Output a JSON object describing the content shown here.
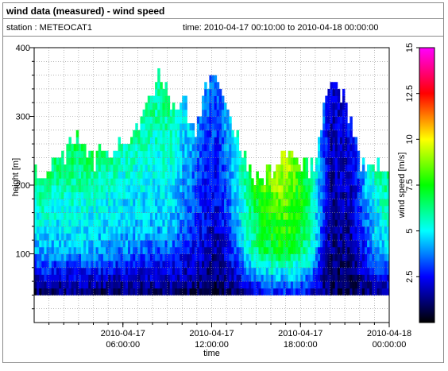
{
  "window": {
    "title": "wind data (measured) - wind speed",
    "station_label": "station : METEOCAT1",
    "time_label": "time: 2010-04-17 00:10:00 to 2010-04-18 00:00:00"
  },
  "chart_data": {
    "type": "heatmap",
    "title": "wind data (measured) - wind speed",
    "xlabel": "time",
    "ylabel": "height [m]",
    "colorbar_label": "wind speed [m/s]",
    "x_range_hours": [
      0,
      24
    ],
    "ylim": [
      0,
      400
    ],
    "y_ticks": [
      100,
      200,
      300,
      400
    ],
    "y_tick_labels": [
      "100",
      "200",
      "300",
      "400"
    ],
    "x_ticks": [
      {
        "hours": 6,
        "line1": "2010-04-17",
        "line2": "06:00:00"
      },
      {
        "hours": 12,
        "line1": "2010-04-17",
        "line2": "12:00:00"
      },
      {
        "hours": 18,
        "line1": "2010-04-17",
        "line2": "18:00:00"
      },
      {
        "hours": 24,
        "line1": "2010-04-18",
        "line2": "00:00:00"
      }
    ],
    "colorbar_range": [
      0,
      15
    ],
    "colorbar_ticks": [
      2.5,
      5,
      7.5,
      10,
      12.5,
      15
    ],
    "colorbar_tick_labels": [
      "2.5",
      "5",
      "7.5",
      "10",
      "12.5",
      "15"
    ],
    "colormap": [
      "#000000",
      "#0000ff",
      "#00ffff",
      "#00ff00",
      "#ffff00",
      "#ff0000",
      "#ff00ff"
    ],
    "height_bins_m": [
      40,
      400
    ],
    "height_bin_size_m": 10,
    "time_bin_size_min": 10,
    "profile_top_m": [
      {
        "hours": 0.0,
        "top_m": 235
      },
      {
        "hours": 0.5,
        "top_m": 225
      },
      {
        "hours": 1.0,
        "top_m": 235
      },
      {
        "hours": 2.0,
        "top_m": 240
      },
      {
        "hours": 2.5,
        "top_m": 275
      },
      {
        "hours": 3.5,
        "top_m": 265
      },
      {
        "hours": 4.0,
        "top_m": 240
      },
      {
        "hours": 5.0,
        "top_m": 255
      },
      {
        "hours": 6.0,
        "top_m": 270
      },
      {
        "hours": 7.0,
        "top_m": 290
      },
      {
        "hours": 7.5,
        "top_m": 330
      },
      {
        "hours": 8.0,
        "top_m": 345
      },
      {
        "hours": 8.5,
        "top_m": 370
      },
      {
        "hours": 9.0,
        "top_m": 340
      },
      {
        "hours": 9.5,
        "top_m": 310
      },
      {
        "hours": 10.0,
        "top_m": 340
      },
      {
        "hours": 10.5,
        "top_m": 300
      },
      {
        "hours": 11.0,
        "top_m": 280
      },
      {
        "hours": 11.5,
        "top_m": 340
      },
      {
        "hours": 12.0,
        "top_m": 365
      },
      {
        "hours": 12.5,
        "top_m": 350
      },
      {
        "hours": 13.0,
        "top_m": 310
      },
      {
        "hours": 13.5,
        "top_m": 290
      },
      {
        "hours": 14.0,
        "top_m": 260
      },
      {
        "hours": 14.5,
        "top_m": 230
      },
      {
        "hours": 15.0,
        "top_m": 215
      },
      {
        "hours": 16.0,
        "top_m": 220
      },
      {
        "hours": 17.0,
        "top_m": 250
      },
      {
        "hours": 17.5,
        "top_m": 245
      },
      {
        "hours": 18.0,
        "top_m": 225
      },
      {
        "hours": 19.0,
        "top_m": 240
      },
      {
        "hours": 19.5,
        "top_m": 310
      },
      {
        "hours": 20.0,
        "top_m": 345
      },
      {
        "hours": 20.5,
        "top_m": 355
      },
      {
        "hours": 21.0,
        "top_m": 330
      },
      {
        "hours": 22.0,
        "top_m": 235
      },
      {
        "hours": 23.0,
        "top_m": 235
      },
      {
        "hours": 24.0,
        "top_m": 225
      }
    ],
    "speed_profile": [
      {
        "hours": 0.0,
        "low_m_s": 1.0,
        "mid_m_s": 4.0,
        "top_m_s": 6.5
      },
      {
        "hours": 3.0,
        "low_m_s": 1.2,
        "mid_m_s": 4.5,
        "top_m_s": 7.0
      },
      {
        "hours": 6.0,
        "low_m_s": 1.0,
        "mid_m_s": 4.0,
        "top_m_s": 6.0
      },
      {
        "hours": 9.0,
        "low_m_s": 1.2,
        "mid_m_s": 4.5,
        "top_m_s": 6.5
      },
      {
        "hours": 11.0,
        "low_m_s": 1.0,
        "mid_m_s": 2.5,
        "top_m_s": 4.0
      },
      {
        "hours": 12.5,
        "low_m_s": 0.8,
        "mid_m_s": 2.0,
        "top_m_s": 3.5
      },
      {
        "hours": 14.0,
        "low_m_s": 1.5,
        "mid_m_s": 4.5,
        "top_m_s": 6.0
      },
      {
        "hours": 15.5,
        "low_m_s": 2.5,
        "mid_m_s": 6.5,
        "top_m_s": 8.5
      },
      {
        "hours": 17.0,
        "low_m_s": 3.0,
        "mid_m_s": 7.5,
        "top_m_s": 10.0
      },
      {
        "hours": 18.5,
        "low_m_s": 2.5,
        "mid_m_s": 6.0,
        "top_m_s": 7.0
      },
      {
        "hours": 20.0,
        "low_m_s": 0.8,
        "mid_m_s": 1.5,
        "top_m_s": 2.0
      },
      {
        "hours": 21.5,
        "low_m_s": 0.8,
        "mid_m_s": 1.5,
        "top_m_s": 2.5
      },
      {
        "hours": 23.0,
        "low_m_s": 1.5,
        "mid_m_s": 4.0,
        "top_m_s": 6.0
      },
      {
        "hours": 24.0,
        "low_m_s": 1.5,
        "mid_m_s": 4.5,
        "top_m_s": 6.5
      }
    ],
    "grid": true
  }
}
